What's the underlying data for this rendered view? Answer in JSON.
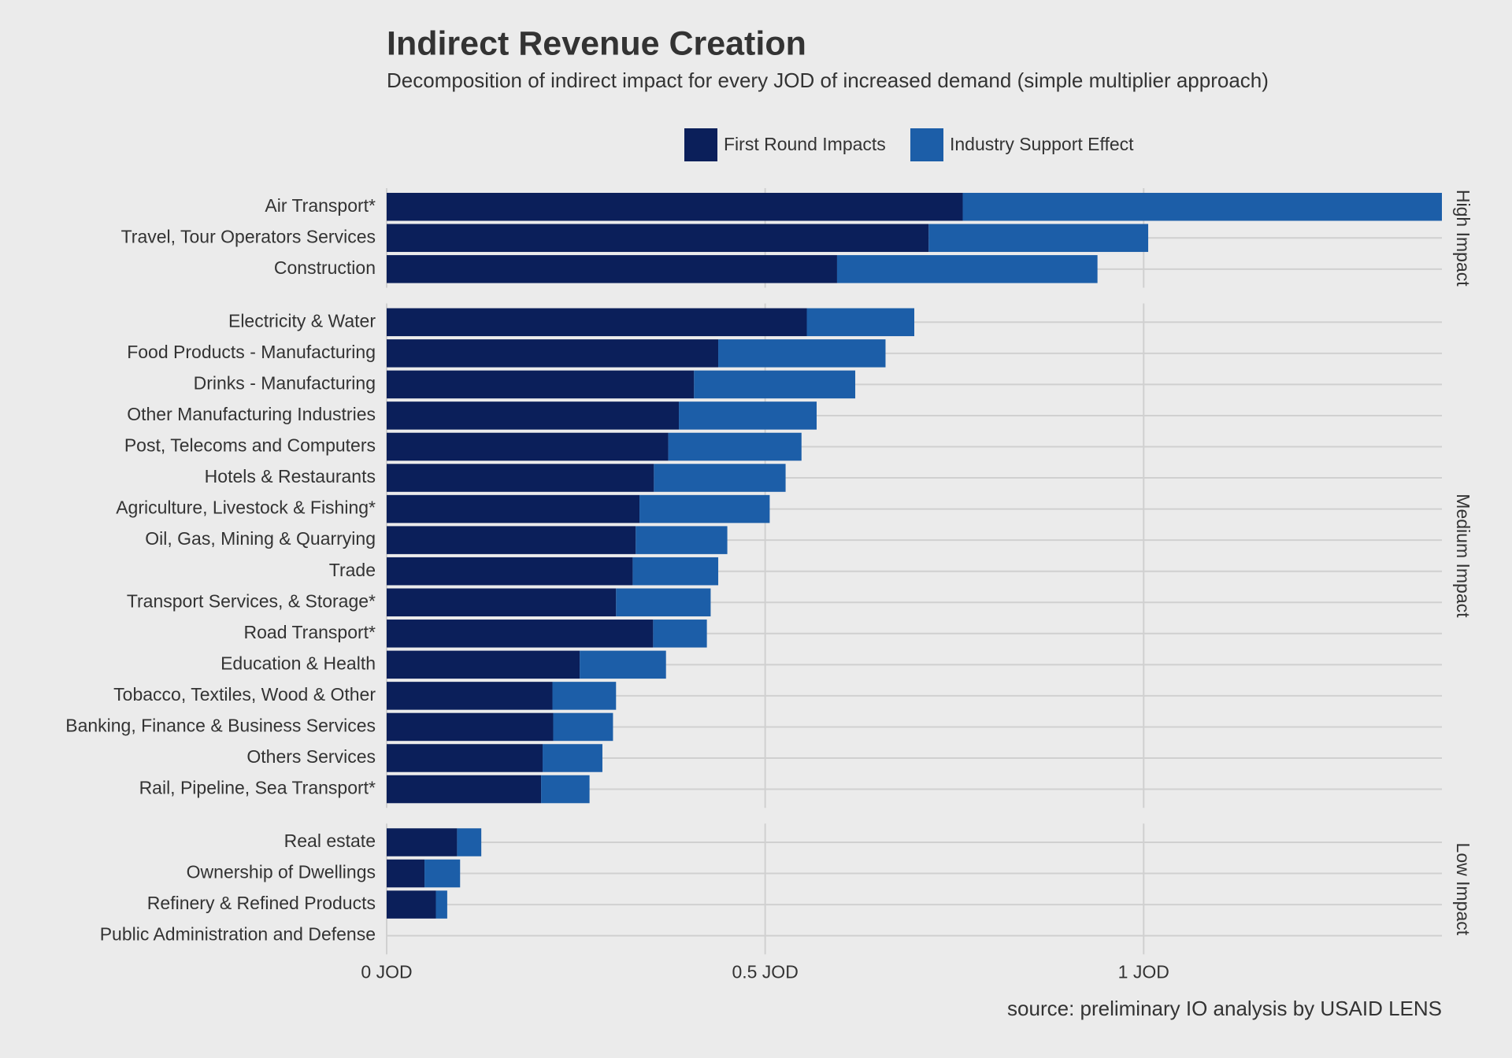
{
  "chart_data": {
    "type": "bar",
    "orientation": "horizontal",
    "stacked": true,
    "title": "Indirect Revenue Creation",
    "subtitle": "Decomposition of indirect impact for every JOD of increased demand (simple multiplier approach)",
    "caption": "source: preliminary IO analysis by USAID LENS",
    "panels": [
      {
        "label": "High Impact",
        "categories": [
          "Air Transport*",
          "Travel, Tour Operators Services",
          "Construction"
        ]
      },
      {
        "label": "Medium Impact",
        "categories": [
          "Electricity & Water",
          "Food Products - Manufacturing",
          "Drinks - Manufacturing",
          "Other Manufacturing Industries",
          "Post, Telecoms and Computers",
          "Hotels & Restaurants",
          "Agriculture, Livestock & Fishing*",
          "Oil, Gas, Mining & Quarrying",
          "Trade",
          "Transport Services, & Storage*",
          "Road Transport*",
          "Education & Health",
          "Tobacco, Textiles, Wood & Other",
          "Banking, Finance & Business Services",
          "Others Services",
          "Rail, Pipeline, Sea Transport*"
        ]
      },
      {
        "label": "Low Impact",
        "categories": [
          "Real estate",
          "Ownership of Dwellings",
          "Refinery & Refined Products",
          "Public Administration and Defense"
        ]
      }
    ],
    "series": [
      {
        "name": "First Round Impacts",
        "color": "#0b1f5a",
        "values": [
          0.761,
          0.716,
          0.595,
          0.555,
          0.438,
          0.406,
          0.386,
          0.372,
          0.353,
          0.334,
          0.329,
          0.325,
          0.303,
          0.352,
          0.255,
          0.219,
          0.22,
          0.206,
          0.204,
          0.093,
          0.05,
          0.065,
          0
        ]
      },
      {
        "name": "Industry Support Effect",
        "color": "#1c5ea8",
        "values": [
          0.633,
          0.29,
          0.344,
          0.142,
          0.221,
          0.213,
          0.182,
          0.176,
          0.174,
          0.172,
          0.121,
          0.113,
          0.125,
          0.071,
          0.114,
          0.084,
          0.079,
          0.079,
          0.064,
          0.032,
          0.047,
          0.015,
          0
        ]
      }
    ],
    "xlim": [
      0,
      1.394
    ],
    "xticks": [
      {
        "value": 0,
        "label": "0 JOD"
      },
      {
        "value": 0.5,
        "label": "0.5 JOD"
      },
      {
        "value": 1,
        "label": "1 JOD"
      }
    ],
    "grid": true,
    "legend": "top"
  }
}
